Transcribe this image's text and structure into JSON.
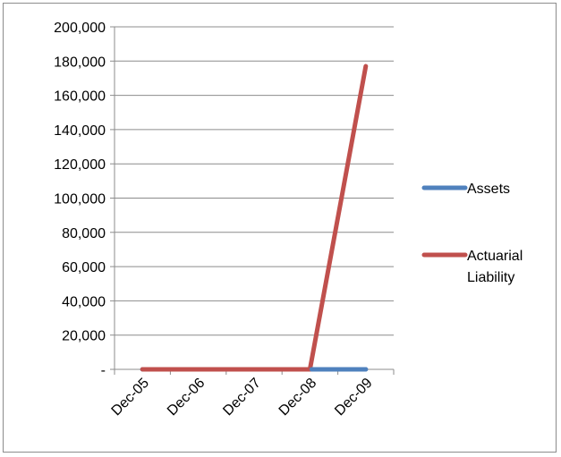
{
  "chart_data": {
    "type": "line",
    "title": "",
    "xlabel": "",
    "ylabel": "",
    "categories": [
      "Dec-05",
      "Dec-06",
      "Dec-07",
      "Dec-08",
      "Dec-09"
    ],
    "series": [
      {
        "name": "Assets",
        "color": "#4f81bd",
        "values": [
          0,
          0,
          0,
          0,
          0
        ]
      },
      {
        "name": "Actuarial Liability",
        "name_lines": [
          "Actuarial",
          "Liability"
        ],
        "color": "#c0504d",
        "values": [
          0,
          0,
          0,
          0,
          177000
        ]
      }
    ],
    "ylim": [
      0,
      200000
    ],
    "yticks": [
      0,
      20000,
      40000,
      60000,
      80000,
      100000,
      120000,
      140000,
      160000,
      180000,
      200000
    ],
    "ytick_labels": [
      "-",
      "20,000",
      "40,000",
      "60,000",
      "80,000",
      "100,000",
      "120,000",
      "140,000",
      "160,000",
      "180,000",
      "200,000"
    ],
    "grid": true,
    "legend_position": "right"
  }
}
